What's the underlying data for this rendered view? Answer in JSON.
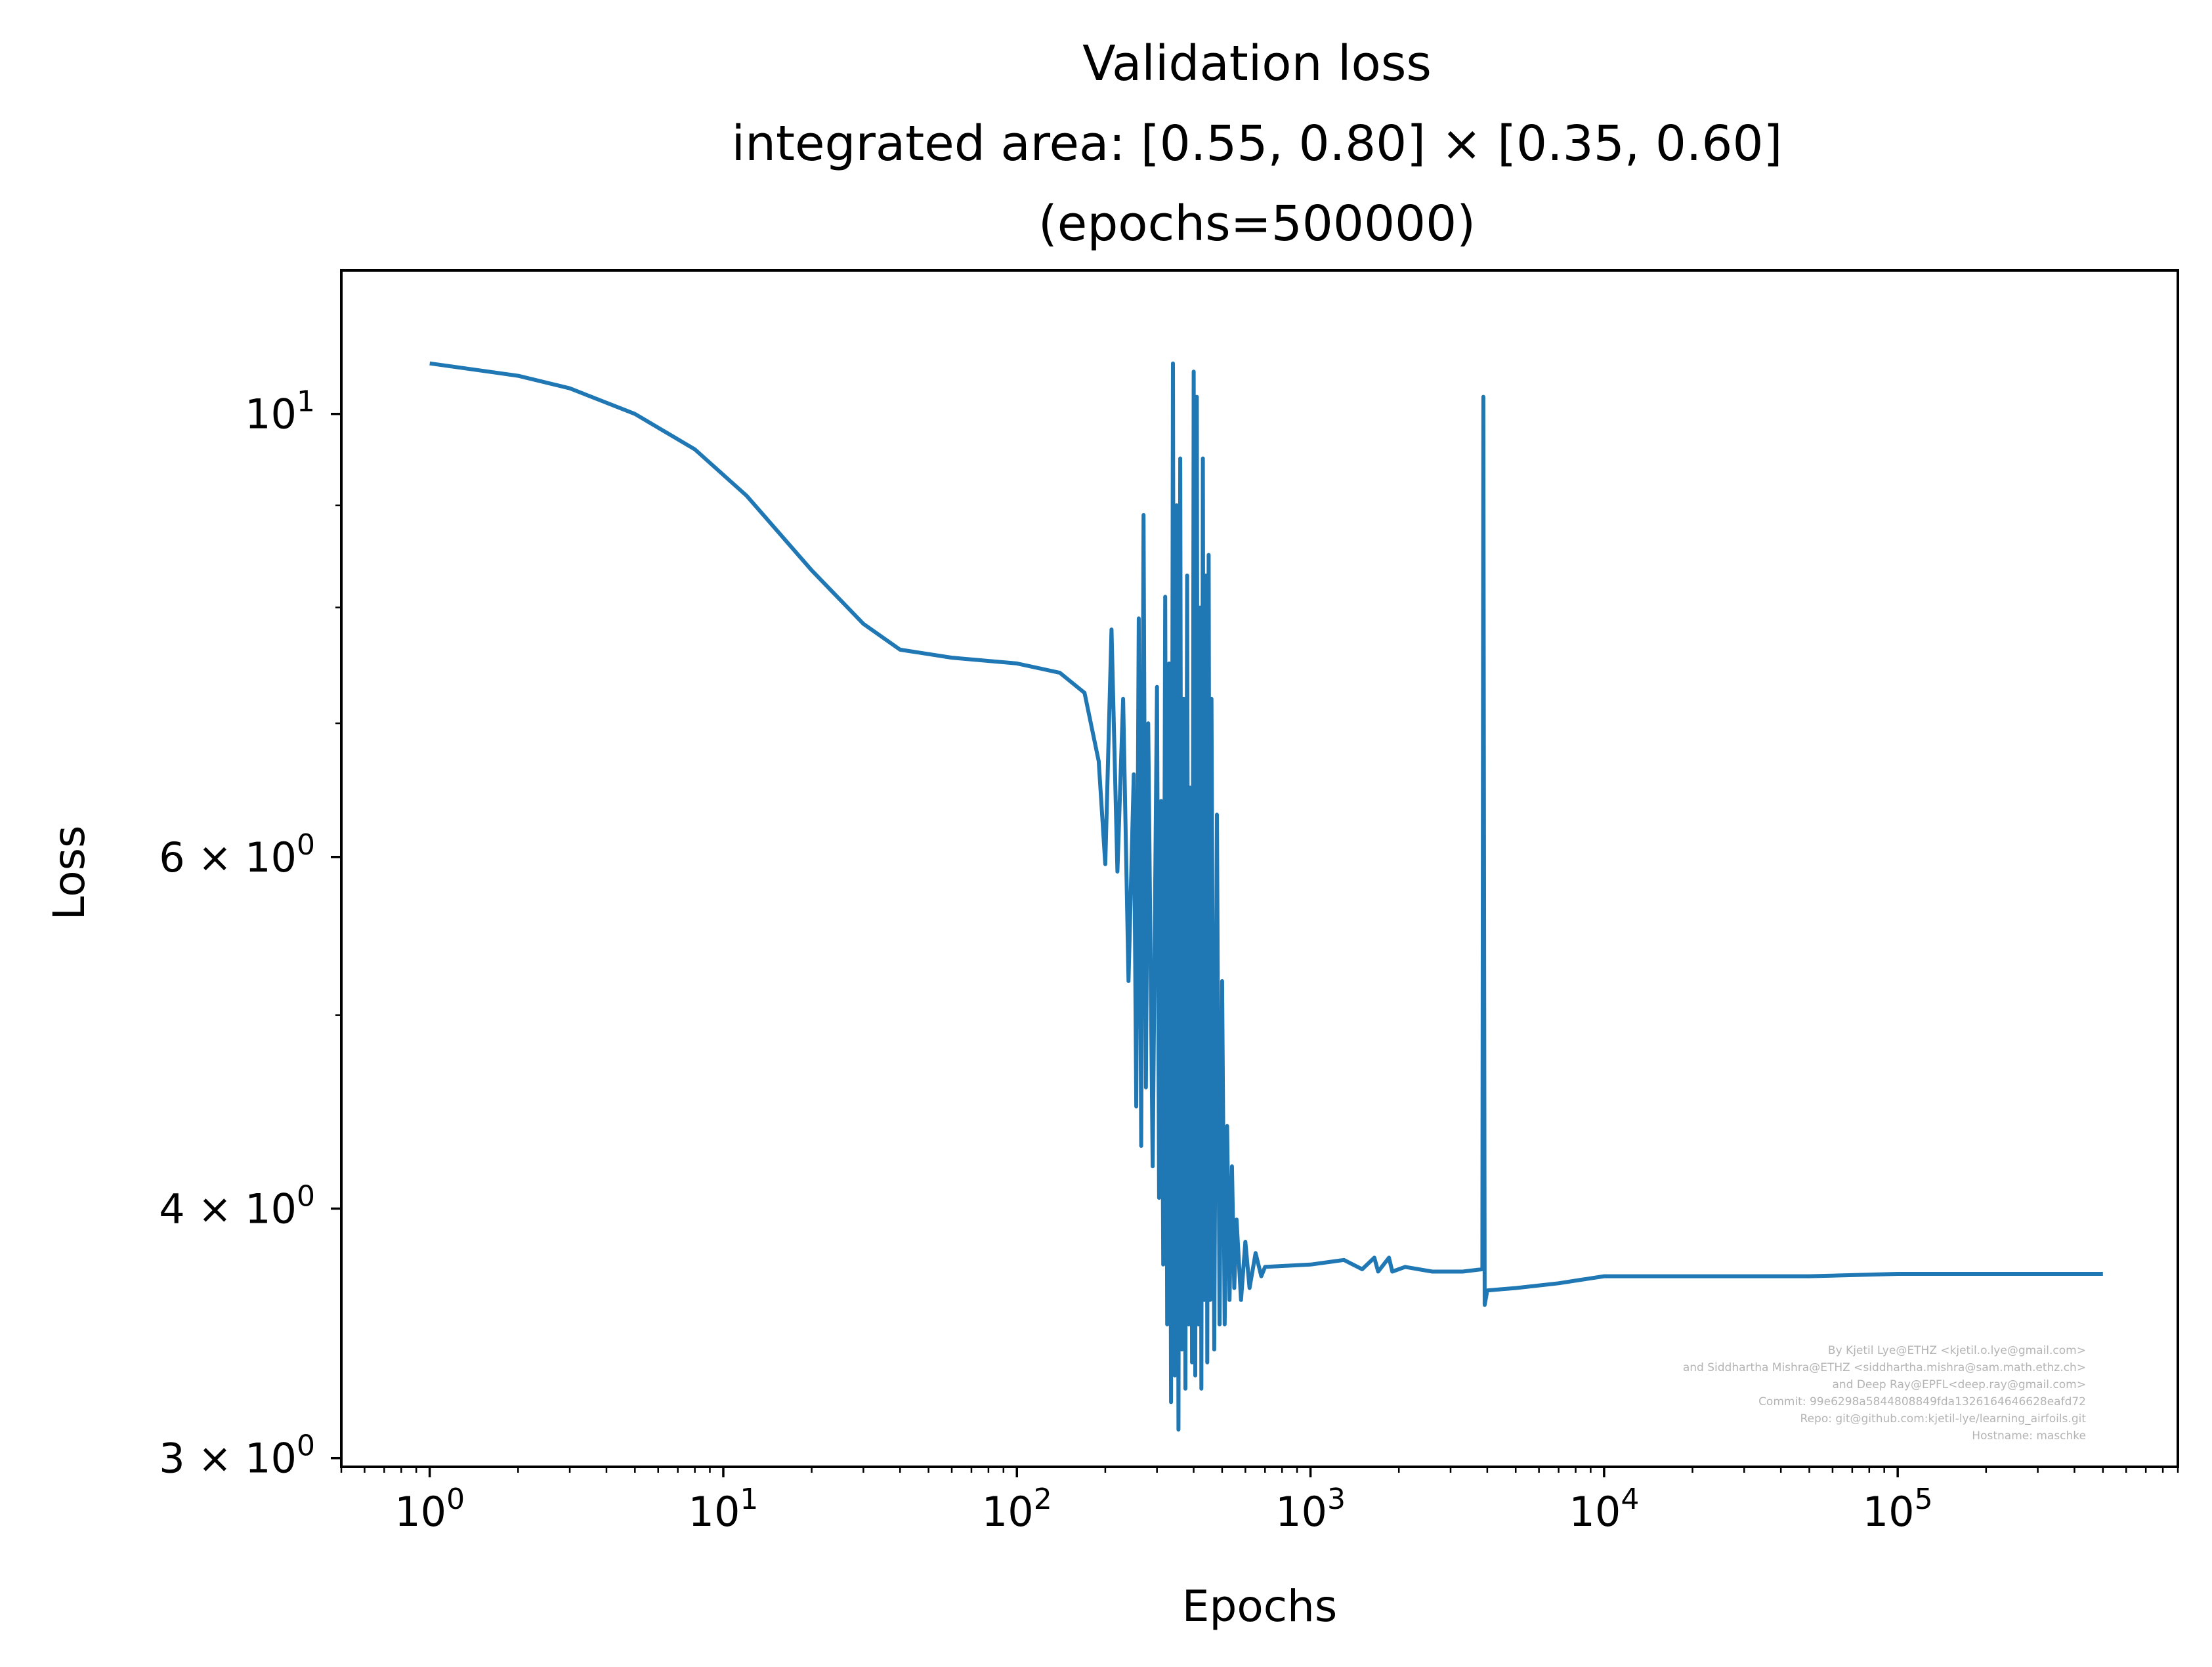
{
  "chart_data": {
    "type": "line",
    "title": "Validation loss",
    "subtitle": "integrated area: [0.55, 0.80] × [0.35, 0.60]",
    "subtitle2": "(epochs=500000)",
    "xlabel": "Epochs",
    "ylabel": "Loss",
    "xscale": "log",
    "yscale": "log",
    "xlim": [
      0.5,
      900000
    ],
    "ylim": [
      2.97,
      11.8
    ],
    "grid": false,
    "legend": null,
    "x_ticks": [
      {
        "value": 1,
        "mantissa": "10",
        "exp": "0"
      },
      {
        "value": 10,
        "mantissa": "10",
        "exp": "1"
      },
      {
        "value": 100,
        "mantissa": "10",
        "exp": "2"
      },
      {
        "value": 1000,
        "mantissa": "10",
        "exp": "3"
      },
      {
        "value": 10000,
        "mantissa": "10",
        "exp": "4"
      },
      {
        "value": 100000,
        "mantissa": "10",
        "exp": "5"
      }
    ],
    "y_ticks": [
      {
        "value": 3,
        "mantissa": "3 × 10",
        "exp": "0"
      },
      {
        "value": 4,
        "mantissa": "4 × 10",
        "exp": "0"
      },
      {
        "value": 6,
        "mantissa": "6 × 10",
        "exp": "0"
      },
      {
        "value": 10,
        "mantissa": "10",
        "exp": "1"
      }
    ],
    "y_minor_ticks": [
      5,
      7,
      8,
      9
    ],
    "series": [
      {
        "color": "#1f77b4",
        "points": [
          [
            1,
            10.6
          ],
          [
            2,
            10.45
          ],
          [
            3,
            10.3
          ],
          [
            5,
            10.0
          ],
          [
            8,
            9.6
          ],
          [
            12,
            9.1
          ],
          [
            20,
            8.35
          ],
          [
            30,
            7.85
          ],
          [
            40,
            7.62
          ],
          [
            60,
            7.55
          ],
          [
            100,
            7.5
          ],
          [
            140,
            7.42
          ],
          [
            170,
            7.25
          ],
          [
            190,
            6.7
          ],
          [
            200,
            5.95
          ],
          [
            210,
            7.8
          ],
          [
            220,
            5.9
          ],
          [
            230,
            7.2
          ],
          [
            240,
            5.2
          ],
          [
            250,
            6.6
          ],
          [
            255,
            4.5
          ],
          [
            260,
            7.9
          ],
          [
            265,
            4.3
          ],
          [
            270,
            8.9
          ],
          [
            275,
            4.6
          ],
          [
            280,
            7.0
          ],
          [
            290,
            4.2
          ],
          [
            300,
            7.3
          ],
          [
            305,
            4.05
          ],
          [
            310,
            6.4
          ],
          [
            315,
            3.75
          ],
          [
            320,
            8.1
          ],
          [
            325,
            3.5
          ],
          [
            330,
            7.5
          ],
          [
            335,
            3.2
          ],
          [
            340,
            10.6
          ],
          [
            345,
            3.3
          ],
          [
            350,
            9.0
          ],
          [
            355,
            3.1
          ],
          [
            360,
            9.5
          ],
          [
            365,
            3.4
          ],
          [
            370,
            7.2
          ],
          [
            375,
            3.25
          ],
          [
            380,
            8.3
          ],
          [
            385,
            3.5
          ],
          [
            390,
            6.5
          ],
          [
            395,
            3.35
          ],
          [
            400,
            10.5
          ],
          [
            405,
            3.3
          ],
          [
            410,
            10.2
          ],
          [
            415,
            3.5
          ],
          [
            420,
            8.0
          ],
          [
            425,
            3.25
          ],
          [
            430,
            9.5
          ],
          [
            435,
            3.6
          ],
          [
            440,
            8.3
          ],
          [
            445,
            3.35
          ],
          [
            450,
            8.5
          ],
          [
            455,
            3.6
          ],
          [
            460,
            7.2
          ],
          [
            470,
            3.4
          ],
          [
            480,
            6.3
          ],
          [
            490,
            3.5
          ],
          [
            500,
            5.2
          ],
          [
            510,
            3.5
          ],
          [
            520,
            4.4
          ],
          [
            530,
            3.6
          ],
          [
            540,
            4.2
          ],
          [
            550,
            3.65
          ],
          [
            560,
            3.95
          ],
          [
            580,
            3.6
          ],
          [
            600,
            3.85
          ],
          [
            620,
            3.65
          ],
          [
            650,
            3.8
          ],
          [
            680,
            3.7
          ],
          [
            700,
            3.74
          ],
          [
            1000,
            3.75
          ],
          [
            1300,
            3.77
          ],
          [
            1500,
            3.73
          ],
          [
            1650,
            3.78
          ],
          [
            1700,
            3.72
          ],
          [
            1850,
            3.78
          ],
          [
            1900,
            3.72
          ],
          [
            2100,
            3.74
          ],
          [
            2600,
            3.72
          ],
          [
            3300,
            3.72
          ],
          [
            3850,
            3.73
          ],
          [
            3880,
            10.2
          ],
          [
            3920,
            3.58
          ],
          [
            4000,
            3.64
          ],
          [
            5000,
            3.65
          ],
          [
            7000,
            3.67
          ],
          [
            10000,
            3.7
          ],
          [
            20000,
            3.7
          ],
          [
            50000,
            3.7
          ],
          [
            100000,
            3.71
          ],
          [
            200000,
            3.71
          ],
          [
            500000,
            3.71
          ]
        ]
      }
    ]
  },
  "credits": [
    "By Kjetil Lye@ETHZ <kjetil.o.lye@gmail.com>",
    "and Siddhartha Mishra@ETHZ <siddhartha.mishra@sam.math.ethz.ch>",
    "and Deep Ray@EPFL<deep.ray@gmail.com>",
    "Commit: 99e6298a5844808849fda1326164646628eafd72",
    "Repo: git@github.com:kjetil-lye/learning_airfoils.git",
    "Hostname: maschke"
  ]
}
